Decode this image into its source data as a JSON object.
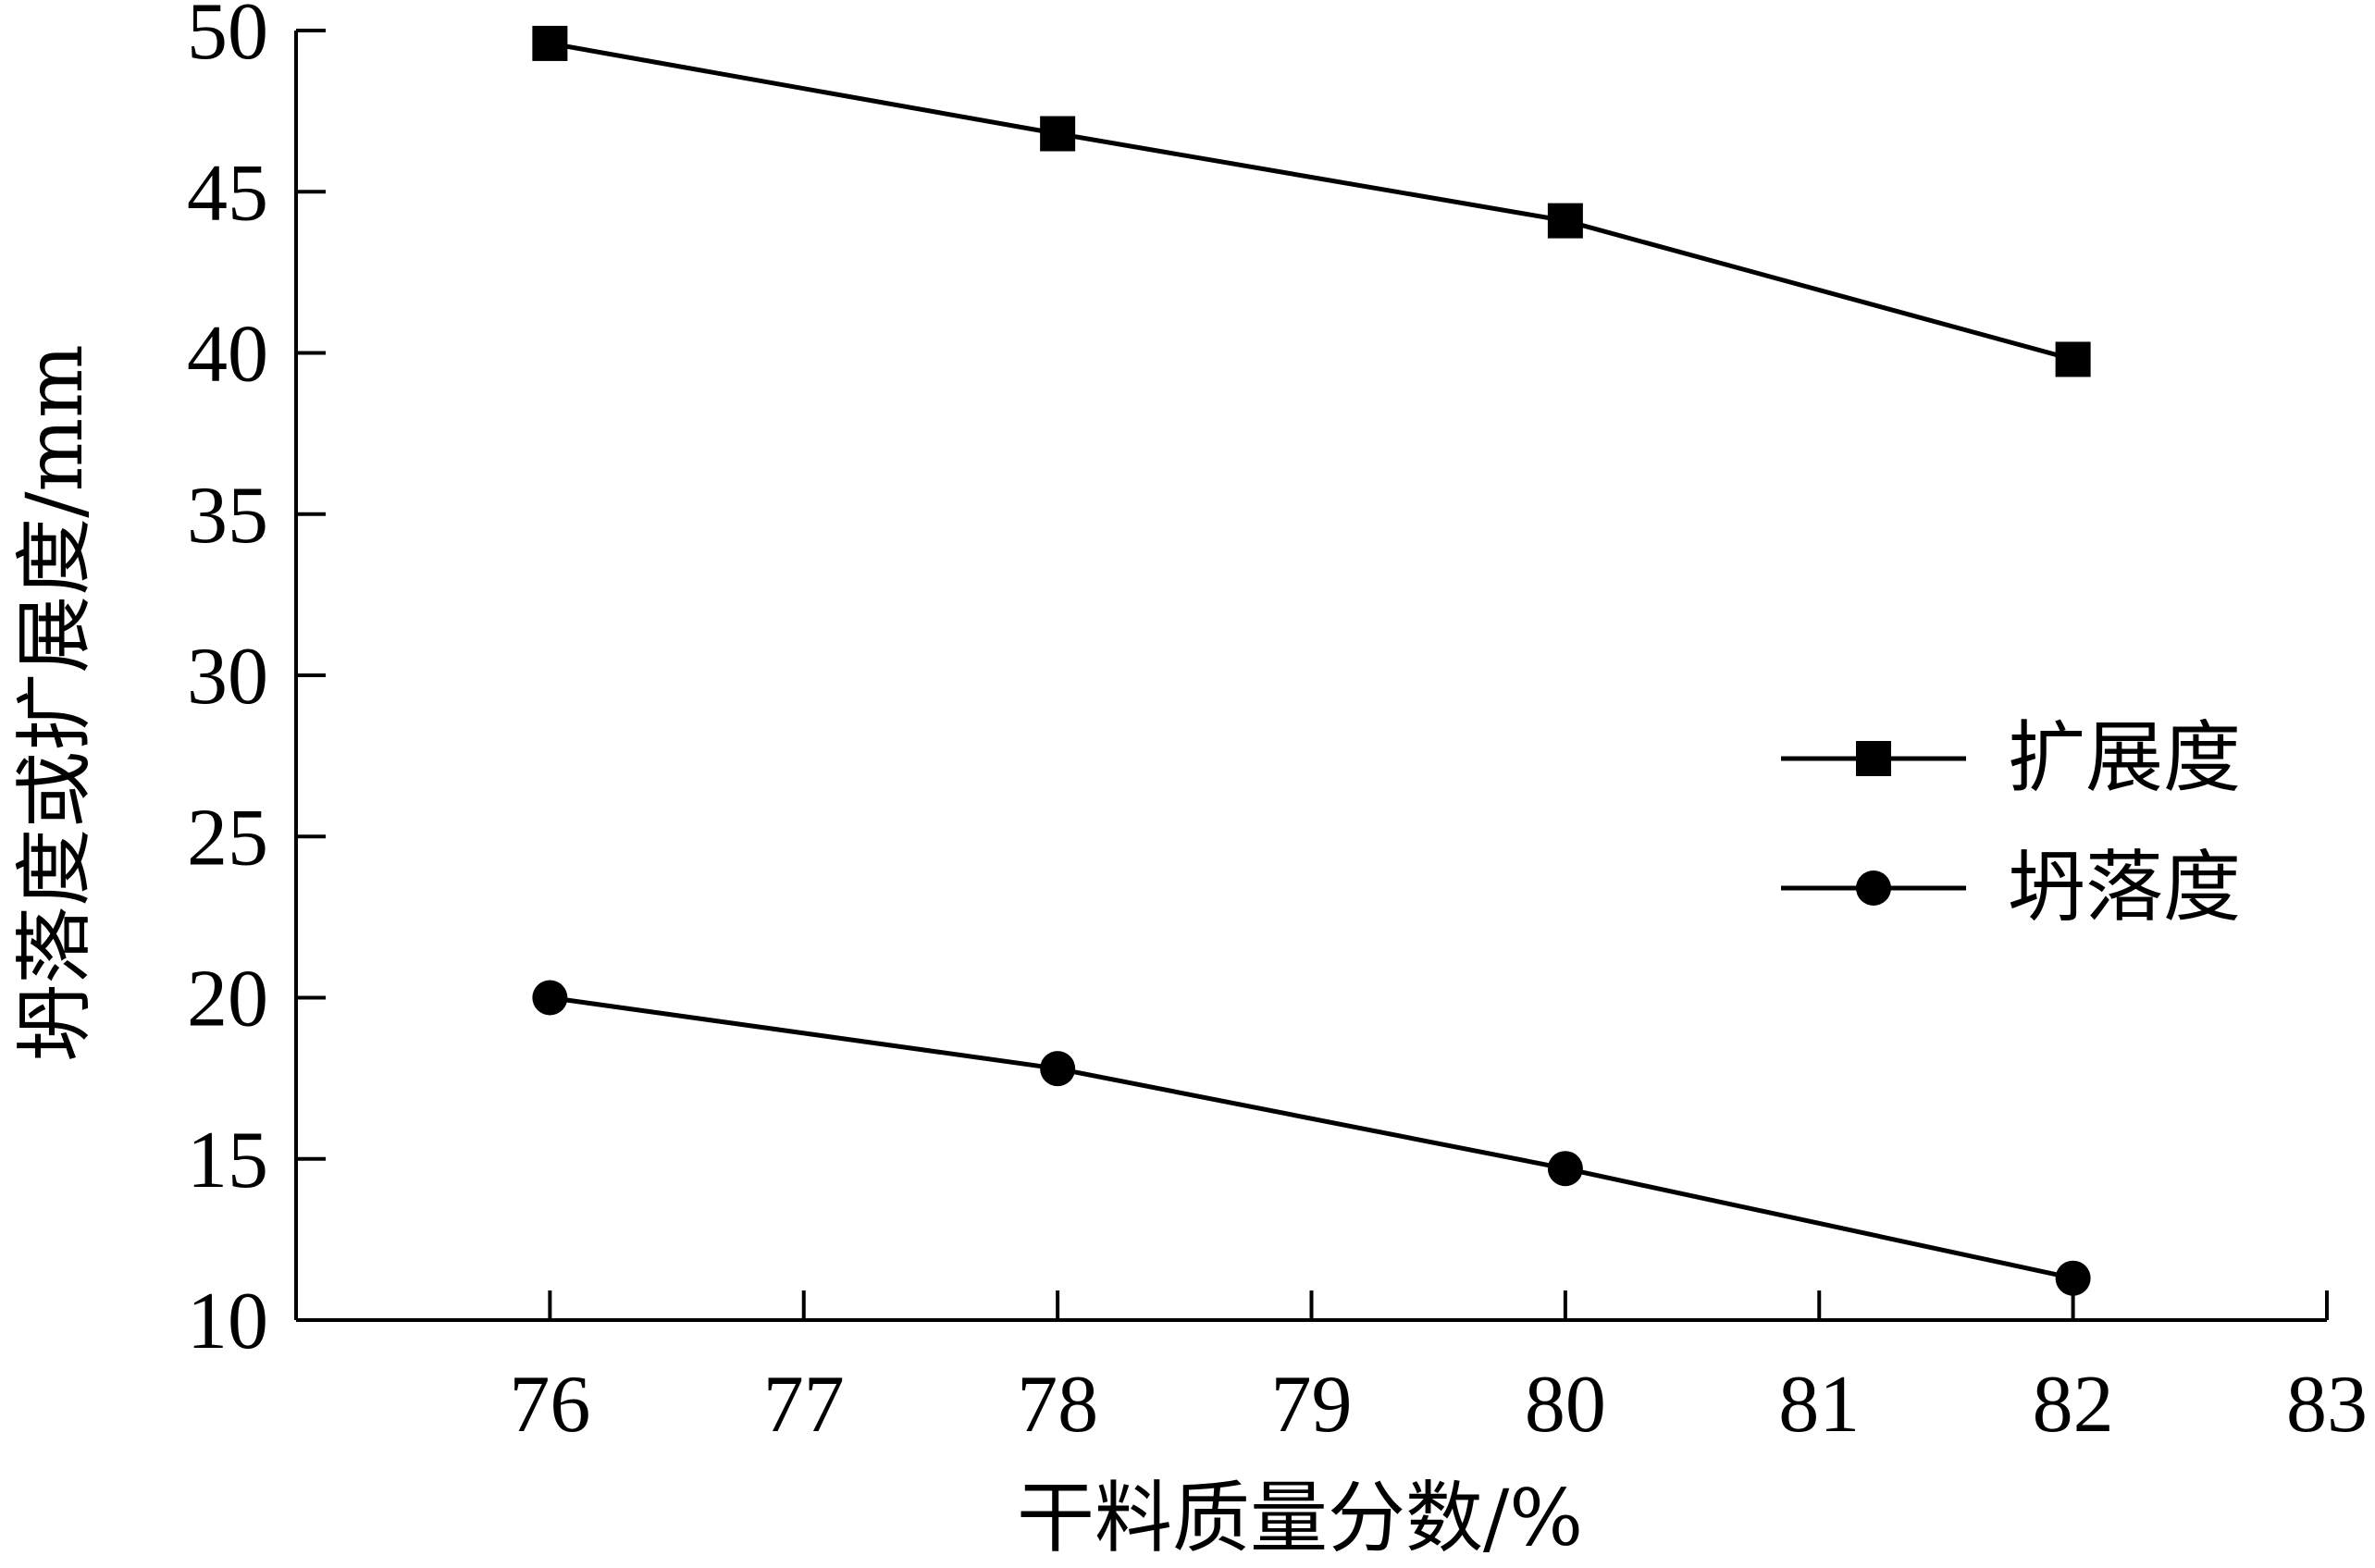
{
  "chart_data": {
    "type": "line",
    "title": "",
    "xlabel": "干料质量分数/%",
    "ylabel": "坍落度或扩展度/mm",
    "xlim": [
      75,
      83
    ],
    "ylim": [
      10,
      50
    ],
    "xticks": [
      76,
      77,
      78,
      79,
      80,
      81,
      82,
      83
    ],
    "yticks": [
      10,
      15,
      20,
      25,
      30,
      35,
      40,
      45,
      50
    ],
    "grid": false,
    "legend_position": "right-middle",
    "series": [
      {
        "name": "扩展度",
        "marker": "square",
        "color": "#000000",
        "x": [
          76,
          78,
          80,
          82
        ],
        "y": [
          49.6,
          46.8,
          44.1,
          39.8
        ]
      },
      {
        "name": "坍落度",
        "marker": "circle",
        "color": "#000000",
        "x": [
          76,
          78,
          80,
          82
        ],
        "y": [
          20.0,
          17.8,
          14.7,
          11.3
        ]
      }
    ]
  }
}
